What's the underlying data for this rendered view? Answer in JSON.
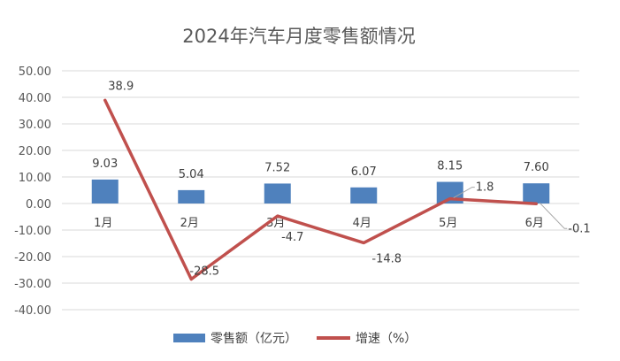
{
  "chart_data": {
    "type": "bar",
    "title": "2024年汽车月度零售额情况",
    "categories": [
      "1月",
      "2月",
      "3月",
      "4月",
      "5月",
      "6月"
    ],
    "series": [
      {
        "name": "零售额（亿元）",
        "type": "bar",
        "color": "#4f81bd",
        "values": [
          9.03,
          5.04,
          7.52,
          6.07,
          8.15,
          7.6
        ],
        "labels": [
          "9.03",
          "5.04",
          "7.52",
          "6.07",
          "8.15",
          "7.60"
        ]
      },
      {
        "name": "增速（%）",
        "type": "line",
        "color": "#c0504d",
        "values": [
          38.9,
          -28.5,
          -4.7,
          -14.8,
          1.8,
          -0.1
        ],
        "labels": [
          "38.9",
          "-28.5",
          "-4.7",
          "-14.8",
          "1.8",
          "-0.1"
        ]
      }
    ],
    "ylim": [
      -40,
      50
    ],
    "yticks": [
      "50.00",
      "40.00",
      "30.00",
      "20.00",
      "10.00",
      "0.00",
      "-10.00",
      "-20.00",
      "-30.00",
      "-40.00"
    ],
    "grid": true,
    "legend": "bottom"
  }
}
